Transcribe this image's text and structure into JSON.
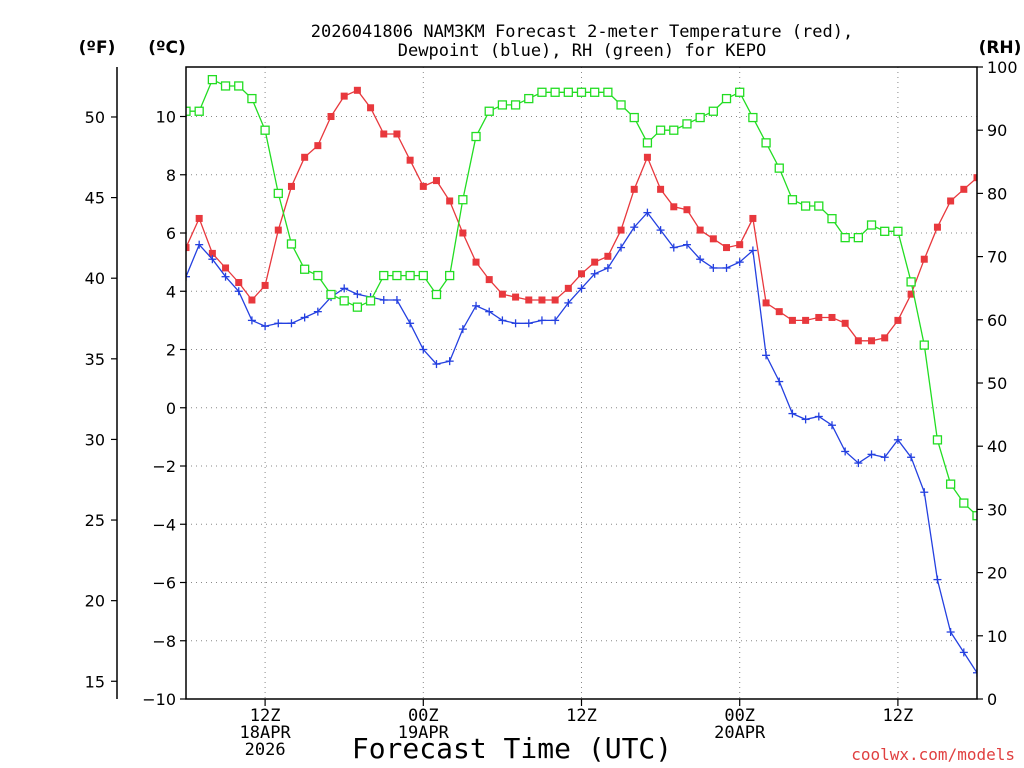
{
  "chart_data": {
    "type": "line",
    "title": [
      "2026041806 NAM3KM Forecast 2-meter Temperature (red),",
      "Dewpoint (blue), RH (green) for KEPO"
    ],
    "left_axis_f": {
      "unit_label": "(ºF)",
      "ticks": [
        15,
        20,
        25,
        30,
        35,
        40,
        45,
        50
      ],
      "range": [
        13.9,
        53.1
      ]
    },
    "left_axis_c": {
      "unit_label": "(ºC)",
      "ticks": [
        -10,
        -8,
        -6,
        -4,
        -2,
        0,
        2,
        4,
        6,
        8,
        10
      ],
      "range": [
        -10,
        11.7
      ]
    },
    "right_axis_rh": {
      "unit_label": "(RH)",
      "ticks": [
        0,
        10,
        20,
        30,
        40,
        50,
        60,
        70,
        80,
        90,
        100
      ],
      "range": [
        0,
        100
      ]
    },
    "x_range_hours": [
      6,
      66
    ],
    "x_ticks": [
      {
        "hour": 12,
        "lines": [
          "12Z",
          "18APR",
          "2026"
        ]
      },
      {
        "hour": 24,
        "lines": [
          "00Z",
          "19APR"
        ]
      },
      {
        "hour": 36,
        "lines": [
          "12Z"
        ]
      },
      {
        "hour": 48,
        "lines": [
          "00Z",
          "20APR"
        ]
      },
      {
        "hour": 60,
        "lines": [
          "12Z"
        ]
      }
    ],
    "xlabel": "Forecast Time (UTC)",
    "grid": true,
    "series": [
      {
        "name": "Temperature",
        "unit": "C",
        "color": "#e8383d",
        "marker": "filled-square",
        "x": [
          6,
          7,
          8,
          9,
          10,
          11,
          12,
          13,
          14,
          15,
          16,
          17,
          18,
          19,
          20,
          21,
          22,
          23,
          24,
          25,
          26,
          27,
          28,
          29,
          30,
          31,
          32,
          33,
          34,
          35,
          36,
          37,
          38,
          39,
          40,
          41,
          42,
          43,
          44,
          45,
          46,
          47,
          48,
          49,
          50,
          51,
          52,
          53,
          54,
          55,
          56,
          57,
          58,
          59,
          60,
          61,
          62,
          63,
          64,
          65,
          66
        ],
        "values": [
          5.5,
          6.5,
          5.3,
          4.8,
          4.3,
          3.7,
          4.2,
          6.1,
          7.6,
          8.6,
          9.0,
          10.0,
          10.7,
          10.9,
          10.3,
          9.4,
          9.4,
          8.5,
          7.6,
          7.8,
          7.1,
          6.0,
          5.0,
          4.4,
          3.9,
          3.8,
          3.7,
          3.7,
          3.7,
          4.1,
          4.6,
          5.0,
          5.2,
          6.1,
          7.5,
          8.6,
          7.5,
          6.9,
          6.8,
          6.1,
          5.8,
          5.5,
          5.6,
          6.5,
          3.6,
          3.3,
          3.0,
          3.0,
          3.1,
          3.1,
          2.9,
          2.3,
          2.3,
          2.4,
          3.0,
          3.9,
          5.1,
          6.2,
          7.1,
          7.5,
          7.9
        ]
      },
      {
        "name": "Dewpoint",
        "unit": "C",
        "color": "#2440e0",
        "marker": "plus",
        "x": [
          6,
          7,
          8,
          9,
          10,
          11,
          12,
          13,
          14,
          15,
          16,
          17,
          18,
          19,
          20,
          21,
          22,
          23,
          24,
          25,
          26,
          27,
          28,
          29,
          30,
          31,
          32,
          33,
          34,
          35,
          36,
          37,
          38,
          39,
          40,
          41,
          42,
          43,
          44,
          45,
          46,
          47,
          48,
          49,
          50,
          51,
          52,
          53,
          54,
          55,
          56,
          57,
          58,
          59,
          60,
          61,
          62,
          63,
          64,
          65,
          66
        ],
        "values": [
          4.5,
          5.6,
          5.1,
          4.5,
          4.0,
          3.0,
          2.8,
          2.9,
          2.9,
          3.1,
          3.3,
          3.8,
          4.1,
          3.9,
          3.8,
          3.7,
          3.7,
          2.9,
          2.0,
          1.5,
          1.6,
          2.7,
          3.5,
          3.3,
          3.0,
          2.9,
          2.9,
          3.0,
          3.0,
          3.6,
          4.1,
          4.6,
          4.8,
          5.5,
          6.2,
          6.7,
          6.1,
          5.5,
          5.6,
          5.1,
          4.8,
          4.8,
          5.0,
          5.4,
          1.8,
          0.9,
          -0.2,
          -0.4,
          -0.3,
          -0.6,
          -1.5,
          -1.9,
          -1.6,
          -1.7,
          -1.1,
          -1.7,
          -2.9,
          -5.9,
          -7.7,
          -8.4,
          -9.1
        ]
      },
      {
        "name": "RH",
        "unit": "%",
        "color": "#22dd22",
        "marker": "open-square",
        "x": [
          6,
          7,
          8,
          9,
          10,
          11,
          12,
          13,
          14,
          15,
          16,
          17,
          18,
          19,
          20,
          21,
          22,
          23,
          24,
          25,
          26,
          27,
          28,
          29,
          30,
          31,
          32,
          33,
          34,
          35,
          36,
          37,
          38,
          39,
          40,
          41,
          42,
          43,
          44,
          45,
          46,
          47,
          48,
          49,
          50,
          51,
          52,
          53,
          54,
          55,
          56,
          57,
          58,
          59,
          60,
          61,
          62,
          63,
          64,
          65,
          66
        ],
        "values": [
          93,
          93,
          98,
          97,
          97,
          95,
          90,
          80,
          72,
          68,
          67,
          64,
          63,
          62,
          63,
          67,
          67,
          67,
          67,
          64,
          67,
          79,
          89,
          93,
          94,
          94,
          95,
          96,
          96,
          96,
          96,
          96,
          96,
          94,
          92,
          88,
          90,
          90,
          91,
          92,
          93,
          95,
          96,
          92,
          88,
          84,
          79,
          78,
          78,
          76,
          73,
          73,
          75,
          74,
          74,
          66,
          56,
          41,
          34,
          31,
          29
        ]
      }
    ],
    "credit": "coolwx.com/models"
  }
}
